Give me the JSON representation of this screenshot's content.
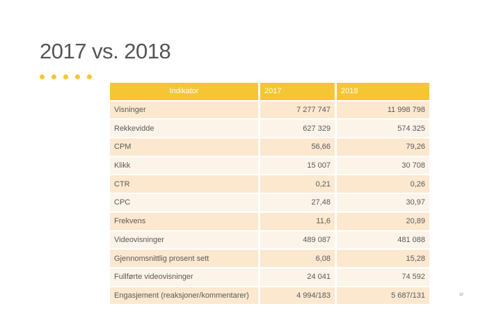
{
  "slide": {
    "title": "2017 vs. 2018",
    "page_number": "10"
  },
  "table": {
    "headers": [
      "Indikator",
      "2017",
      "2018"
    ],
    "rows": [
      [
        "Visninger",
        "7 277 747",
        "11 998 798"
      ],
      [
        "Rekkevidde",
        "627 329",
        "574 325"
      ],
      [
        "CPM",
        "56,66",
        "79,26"
      ],
      [
        "Klikk",
        "15 007",
        "30 708"
      ],
      [
        "CTR",
        "0,21",
        "0,26"
      ],
      [
        "CPC",
        "27,48",
        "30,97"
      ],
      [
        "Frekvens",
        "11,6",
        "20,89"
      ],
      [
        "Videovisninger",
        "489 087",
        "481 088"
      ],
      [
        "Gjennomsnittlig prosent sett",
        "6,08",
        "15,28"
      ],
      [
        "Fullførte videovisninger",
        "24 041",
        "74 592"
      ],
      [
        "Engasjement (reaksjoner/kommentarer)",
        "4 994/183",
        "5 687/131"
      ]
    ]
  },
  "colors": {
    "accent": "#f6c533",
    "row_dark": "#fce8cf",
    "row_light": "#fdf4e9"
  }
}
